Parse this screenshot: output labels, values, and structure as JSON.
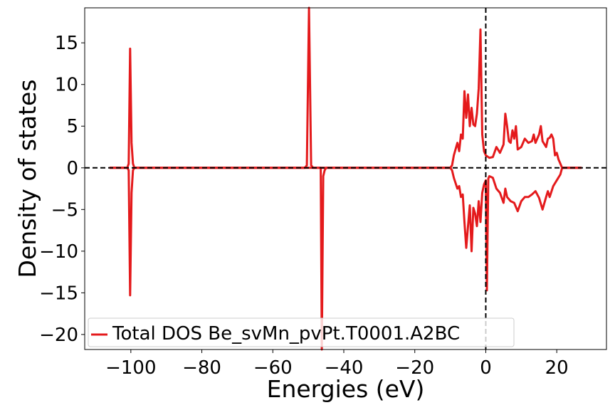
{
  "chart_data": {
    "type": "line",
    "xlabel": "Energies (eV)",
    "ylabel": "Density of states",
    "xlim": [
      -113,
      34
    ],
    "ylim": [
      -21.8,
      19.2
    ],
    "xticks": [
      -100,
      -80,
      -60,
      -40,
      -20,
      0,
      20
    ],
    "yticks": [
      -20,
      -15,
      -10,
      -5,
      0,
      5,
      10,
      15
    ],
    "grid": false,
    "legend_position": "lower-left",
    "reference_lines": [
      {
        "orientation": "horizontal",
        "value": 0,
        "style": "dashed",
        "color": "#000000"
      },
      {
        "orientation": "vertical",
        "value": 0,
        "style": "dashed",
        "color": "#000000"
      }
    ],
    "series": [
      {
        "name": "Total DOS Be_svMn_pvPt.T0001.A2BC",
        "color": "#e41a1c",
        "up": [
          [
            -106,
            0
          ],
          [
            -101,
            0
          ],
          [
            -100.6,
            0.5
          ],
          [
            -100.2,
            14.3
          ],
          [
            -99.8,
            3.0
          ],
          [
            -99.4,
            0.5
          ],
          [
            -99,
            0
          ],
          [
            -51,
            0
          ],
          [
            -50.4,
            0.3
          ],
          [
            -49.8,
            19.2
          ],
          [
            -49.2,
            0.3
          ],
          [
            -48.6,
            0
          ],
          [
            -10,
            0
          ],
          [
            -9.5,
            0.3
          ],
          [
            -9,
            1.5
          ],
          [
            -8,
            3.0
          ],
          [
            -7.5,
            2.0
          ],
          [
            -7,
            4.0
          ],
          [
            -6.5,
            3.5
          ],
          [
            -6,
            9.2
          ],
          [
            -5.5,
            6.0
          ],
          [
            -5,
            8.8
          ],
          [
            -4.5,
            5.0
          ],
          [
            -4,
            7.2
          ],
          [
            -3.5,
            5.2
          ],
          [
            -3,
            5.0
          ],
          [
            -2.5,
            6.5
          ],
          [
            -2,
            9.5
          ],
          [
            -1.5,
            16.6
          ],
          [
            -1,
            4.0
          ],
          [
            -0.5,
            2.0
          ],
          [
            0,
            1.5
          ],
          [
            1,
            1.2
          ],
          [
            2,
            1.3
          ],
          [
            3,
            2.5
          ],
          [
            4,
            1.8
          ],
          [
            5,
            2.8
          ],
          [
            5.5,
            6.5
          ],
          [
            6,
            5.0
          ],
          [
            6.5,
            3.2
          ],
          [
            7,
            3.0
          ],
          [
            7.5,
            4.5
          ],
          [
            8,
            3.5
          ],
          [
            8.5,
            5.0
          ],
          [
            9,
            2.2
          ],
          [
            10,
            2.5
          ],
          [
            11,
            3.5
          ],
          [
            12,
            3.0
          ],
          [
            13,
            3.2
          ],
          [
            13.5,
            4.0
          ],
          [
            14,
            3.0
          ],
          [
            15,
            4.0
          ],
          [
            15.5,
            5.0
          ],
          [
            16,
            3.2
          ],
          [
            17,
            2.5
          ],
          [
            17.5,
            3.5
          ],
          [
            18,
            3.6
          ],
          [
            18.5,
            4.0
          ],
          [
            19,
            3.5
          ],
          [
            19.5,
            1.5
          ],
          [
            20,
            1.8
          ],
          [
            20.5,
            1.0
          ],
          [
            21,
            0.5
          ],
          [
            21.5,
            0
          ],
          [
            27,
            0
          ]
        ],
        "down": [
          [
            -106,
            0
          ],
          [
            -101,
            0
          ],
          [
            -100.6,
            -0.3
          ],
          [
            -100.2,
            -15.3
          ],
          [
            -99.8,
            -3.0
          ],
          [
            -99.4,
            -0.3
          ],
          [
            -99,
            0
          ],
          [
            -46.5,
            0
          ],
          [
            -46.2,
            -21.8
          ],
          [
            -45.8,
            -1.0
          ],
          [
            -45.4,
            -0.3
          ],
          [
            -45,
            0
          ],
          [
            -10,
            0
          ],
          [
            -9.5,
            -0.3
          ],
          [
            -9,
            -1.2
          ],
          [
            -8,
            -2.5
          ],
          [
            -7.5,
            -2.2
          ],
          [
            -7,
            -3.5
          ],
          [
            -6.5,
            -3.2
          ],
          [
            -6,
            -6.5
          ],
          [
            -5.5,
            -9.6
          ],
          [
            -5,
            -7.0
          ],
          [
            -4.5,
            -4.5
          ],
          [
            -4,
            -10.0
          ],
          [
            -3.5,
            -4.8
          ],
          [
            -3,
            -5.5
          ],
          [
            -2.5,
            -7.0
          ],
          [
            -2,
            -4.0
          ],
          [
            -1.5,
            -6.5
          ],
          [
            -1,
            -3.0
          ],
          [
            -0.5,
            -2.0
          ],
          [
            0,
            -1.5
          ],
          [
            0.3,
            -14.7
          ],
          [
            0.7,
            -1.3
          ],
          [
            1,
            -1.0
          ],
          [
            2,
            -1.2
          ],
          [
            3,
            -2.5
          ],
          [
            4,
            -3.0
          ],
          [
            5,
            -4.2
          ],
          [
            5.5,
            -2.5
          ],
          [
            6,
            -3.5
          ],
          [
            7,
            -4.0
          ],
          [
            8,
            -4.2
          ],
          [
            9,
            -5.2
          ],
          [
            10,
            -4.0
          ],
          [
            11,
            -3.5
          ],
          [
            12,
            -3.5
          ],
          [
            13,
            -3.2
          ],
          [
            14,
            -2.8
          ],
          [
            15,
            -3.6
          ],
          [
            16,
            -5.0
          ],
          [
            17,
            -3.5
          ],
          [
            17.5,
            -2.8
          ],
          [
            18,
            -3.5
          ],
          [
            19,
            -2.2
          ],
          [
            20,
            -1.5
          ],
          [
            21,
            -0.8
          ],
          [
            21.5,
            0
          ],
          [
            27,
            0
          ]
        ]
      }
    ]
  }
}
